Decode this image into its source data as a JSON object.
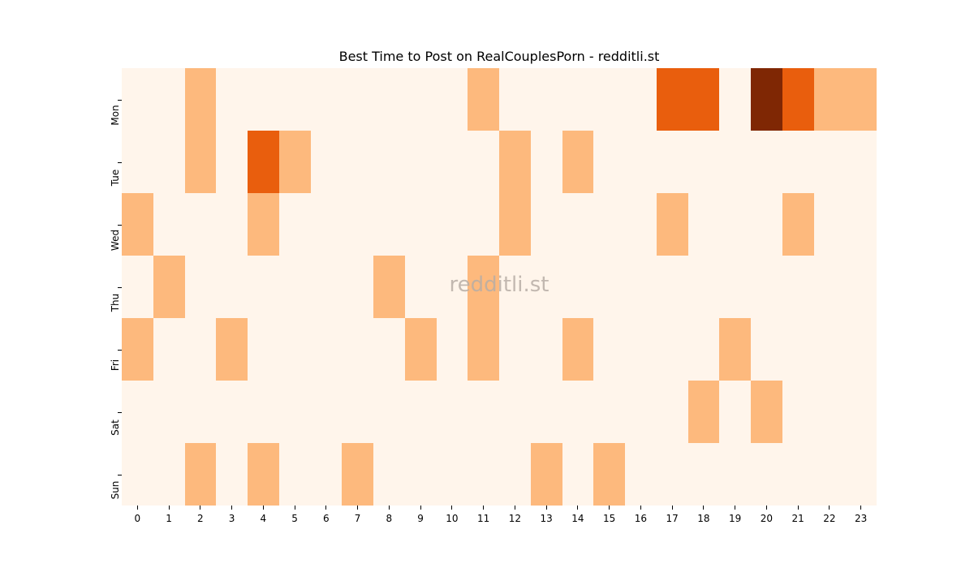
{
  "chart_data": {
    "type": "heatmap",
    "title": "Best Time to Post on RealCouplesPorn - redditli.st",
    "xlabel": "",
    "ylabel": "",
    "x": [
      "0",
      "1",
      "2",
      "3",
      "4",
      "5",
      "6",
      "7",
      "8",
      "9",
      "10",
      "11",
      "12",
      "13",
      "14",
      "15",
      "16",
      "17",
      "18",
      "19",
      "20",
      "21",
      "22",
      "23"
    ],
    "y": [
      "Mon",
      "Tue",
      "Wed",
      "Thu",
      "Fri",
      "Sat",
      "Sun"
    ],
    "colormap": "Oranges",
    "colors": {
      "0": "#fff5eb",
      "1": "#fdb97d",
      "2": "#e95e0d",
      "3": "#7f2704"
    },
    "values": [
      [
        0,
        0,
        1,
        0,
        0,
        0,
        0,
        0,
        0,
        0,
        0,
        1,
        0,
        0,
        0,
        0,
        0,
        2,
        2,
        0,
        3,
        2,
        1,
        1
      ],
      [
        0,
        0,
        1,
        0,
        2,
        1,
        0,
        0,
        0,
        0,
        0,
        0,
        1,
        0,
        1,
        0,
        0,
        0,
        0,
        0,
        0,
        0,
        0,
        0
      ],
      [
        1,
        0,
        0,
        0,
        1,
        0,
        0,
        0,
        0,
        0,
        0,
        0,
        1,
        0,
        0,
        0,
        0,
        1,
        0,
        0,
        0,
        1,
        0,
        0
      ],
      [
        0,
        1,
        0,
        0,
        0,
        0,
        0,
        0,
        1,
        0,
        0,
        1,
        0,
        0,
        0,
        0,
        0,
        0,
        0,
        0,
        0,
        0,
        0,
        0
      ],
      [
        1,
        0,
        0,
        1,
        0,
        0,
        0,
        0,
        0,
        1,
        0,
        1,
        0,
        0,
        1,
        0,
        0,
        0,
        0,
        1,
        0,
        0,
        0,
        0
      ],
      [
        0,
        0,
        0,
        0,
        0,
        0,
        0,
        0,
        0,
        0,
        0,
        0,
        0,
        0,
        0,
        0,
        0,
        0,
        1,
        0,
        1,
        0,
        0,
        0
      ],
      [
        0,
        0,
        1,
        0,
        1,
        0,
        0,
        1,
        0,
        0,
        0,
        0,
        0,
        1,
        0,
        1,
        0,
        0,
        0,
        0,
        0,
        0,
        0,
        0
      ]
    ],
    "grid": false,
    "legend": "none"
  },
  "watermark": "redditli.st"
}
